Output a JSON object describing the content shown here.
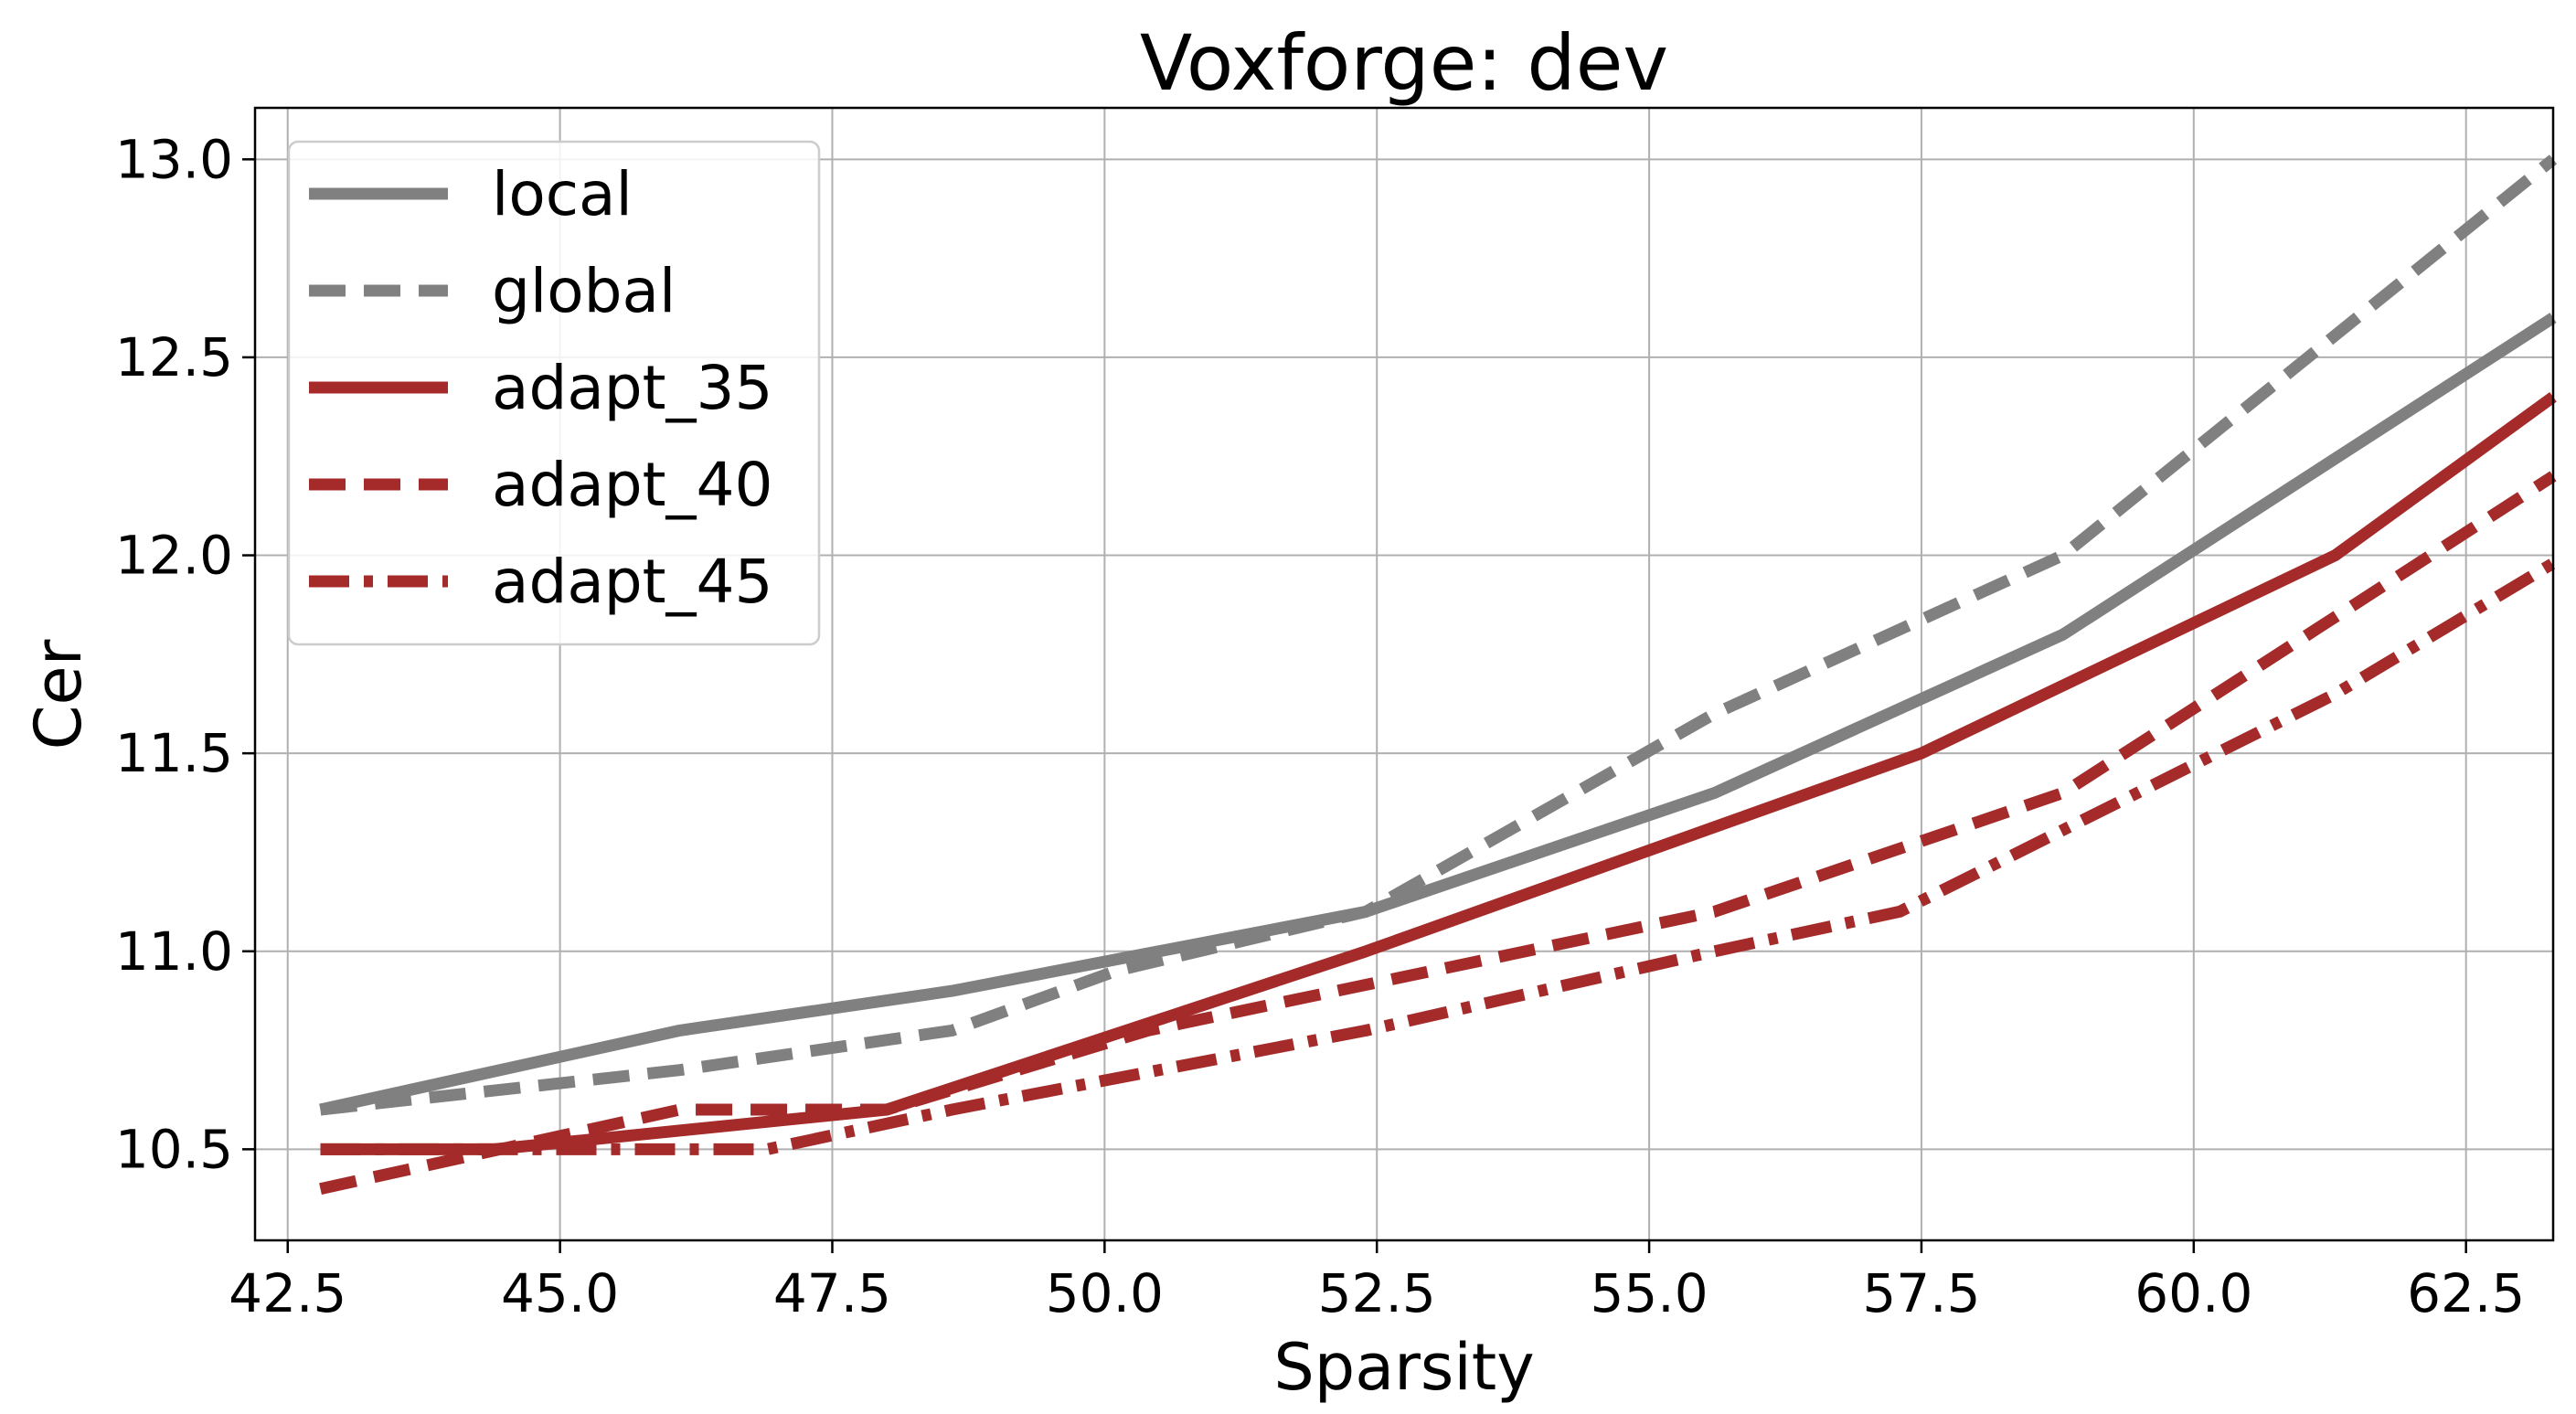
{
  "chart_data": {
    "type": "line",
    "title": "Voxforge: dev",
    "xlabel": "Sparsity",
    "ylabel": "Cer",
    "xlim": [
      42.2,
      63.3
    ],
    "ylim": [
      10.27,
      13.13
    ],
    "xticks": [
      "42.5",
      "45.0",
      "47.5",
      "50.0",
      "52.5",
      "55.0",
      "57.5",
      "60.0",
      "62.5"
    ],
    "yticks": [
      "10.5",
      "11.0",
      "11.5",
      "12.0",
      "12.5",
      "13.0"
    ],
    "grid": true,
    "legend_position": "top-left",
    "series": [
      {
        "name": "local",
        "color": "#808080",
        "style": "solid",
        "x": [
          42.8,
          46.1,
          48.6,
          52.4,
          55.6,
          58.8,
          63.3
        ],
        "y": [
          10.6,
          10.8,
          10.9,
          11.1,
          11.4,
          11.8,
          12.6
        ]
      },
      {
        "name": "global",
        "color": "#808080",
        "style": "dashed",
        "x": [
          42.8,
          46.1,
          48.6,
          50.1,
          52.4,
          55.6,
          58.8,
          63.3
        ],
        "y": [
          10.6,
          10.7,
          10.8,
          10.95,
          11.1,
          11.6,
          12.0,
          13.0
        ]
      },
      {
        "name": "adapt_35",
        "color": "#a52a2a",
        "style": "solid",
        "x": [
          42.8,
          44.4,
          48.0,
          52.4,
          57.5,
          61.3,
          63.3
        ],
        "y": [
          10.5,
          10.5,
          10.6,
          11.0,
          11.5,
          12.0,
          12.4
        ]
      },
      {
        "name": "adapt_40",
        "color": "#a52a2a",
        "style": "dashed",
        "x": [
          42.8,
          46.1,
          48.0,
          50.4,
          55.6,
          58.8,
          63.3
        ],
        "y": [
          10.4,
          10.6,
          10.6,
          10.8,
          11.1,
          11.4,
          12.2
        ]
      },
      {
        "name": "adapt_45",
        "color": "#a52a2a",
        "style": "dashdot",
        "x": [
          42.8,
          46.9,
          48.6,
          52.4,
          55.6,
          57.3,
          61.3,
          63.3
        ],
        "y": [
          10.5,
          10.5,
          10.6,
          10.8,
          11.0,
          11.1,
          11.65,
          11.98
        ]
      }
    ]
  }
}
